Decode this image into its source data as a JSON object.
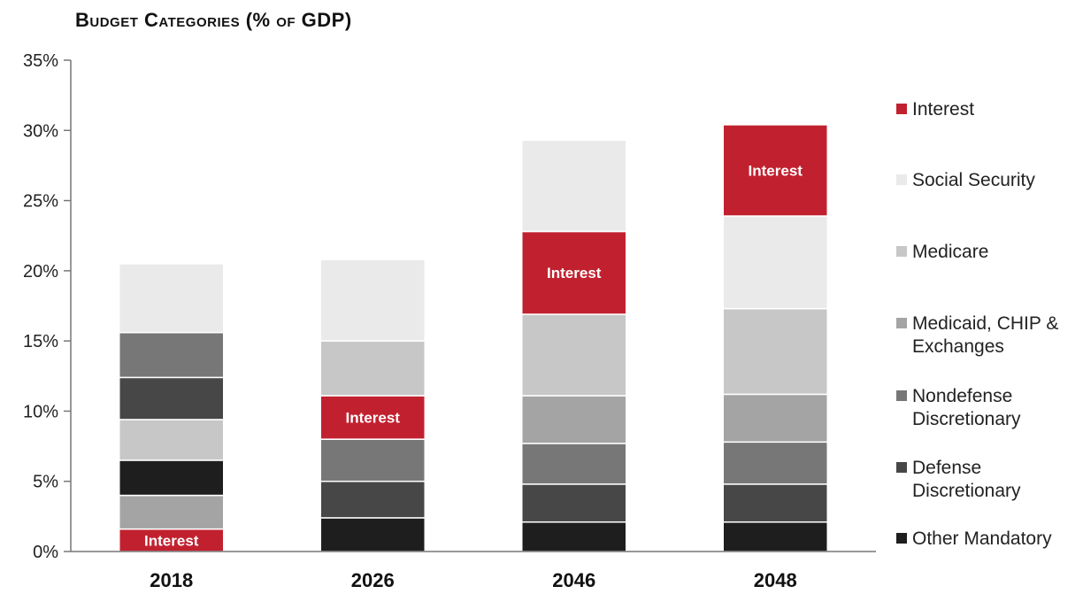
{
  "chart_data": {
    "type": "bar",
    "stacked": true,
    "title": "Budget Categories (% of GDP)",
    "categories": [
      "2018",
      "2026",
      "2046",
      "2048"
    ],
    "ylim": [
      0,
      35
    ],
    "yticks": [
      "0%",
      "5%",
      "10%",
      "15%",
      "20%",
      "25%",
      "30%",
      "35%"
    ],
    "grid": false,
    "legend_position": "right",
    "series": [
      {
        "name": "Other Mandatory",
        "values": [
          2.5,
          2.4,
          2.1,
          2.1
        ],
        "color": "#1e1e1e"
      },
      {
        "name": "Defense Discretionary",
        "values": [
          3.0,
          2.6,
          2.7,
          2.7
        ],
        "color": "#474747"
      },
      {
        "name": "Nondefense Discretionary",
        "values": [
          3.2,
          3.0,
          2.9,
          3.0
        ],
        "color": "#777777"
      },
      {
        "name": "Medicaid, CHIP & Exchanges",
        "values": [
          2.4,
          0,
          3.4,
          3.4
        ],
        "color": "#a4a4a4"
      },
      {
        "name": "Medicare",
        "values": [
          2.9,
          3.9,
          5.8,
          6.1
        ],
        "color": "#c7c7c7"
      },
      {
        "name": "Social Security",
        "values": [
          4.9,
          5.8,
          6.5,
          6.6
        ],
        "color": "#eaeaea"
      },
      {
        "name": "Interest",
        "values": [
          1.6,
          3.1,
          5.9,
          6.5
        ],
        "color": "#c1212f"
      }
    ],
    "stack_order": [
      [
        "Interest",
        "Medicaid, CHIP & Exchanges",
        "Other Mandatory",
        "Medicare",
        "Defense Discretionary",
        "Nondefense Discretionary",
        "Social Security"
      ],
      [
        "Other Mandatory",
        "Medicaid, CHIP & Exchanges",
        "Defense Discretionary",
        "Nondefense Discretionary",
        "Interest",
        "Medicare",
        "Social Security"
      ],
      [
        "Other Mandatory",
        "Defense Discretionary",
        "Nondefense Discretionary",
        "Medicaid, CHIP & Exchanges",
        "Medicare",
        "Interest",
        "Social Security"
      ],
      [
        "Other Mandatory",
        "Defense Discretionary",
        "Nondefense Discretionary",
        "Medicaid, CHIP & Exchanges",
        "Medicare",
        "Social Security",
        "Interest"
      ]
    ],
    "segment_label": "Interest",
    "legend": [
      {
        "label": "Interest",
        "lines": [
          "Interest"
        ],
        "color": "#c1212f"
      },
      {
        "label": "Social Security",
        "lines": [
          "Social Security"
        ],
        "color": "#eaeaea"
      },
      {
        "label": "Medicare",
        "lines": [
          "Medicare"
        ],
        "color": "#c7c7c7"
      },
      {
        "label": "Medicaid, CHIP & Exchanges",
        "lines": [
          "Medicaid, CHIP &",
          "Exchanges"
        ],
        "color": "#a4a4a4"
      },
      {
        "label": "Nondefense Discretionary",
        "lines": [
          "Nondefense",
          "Discretionary"
        ],
        "color": "#777777"
      },
      {
        "label": "Defense Discretionary",
        "lines": [
          "Defense",
          "Discretionary"
        ],
        "color": "#474747"
      },
      {
        "label": "Other Mandatory",
        "lines": [
          "Other Mandatory"
        ],
        "color": "#1e1e1e"
      }
    ]
  }
}
